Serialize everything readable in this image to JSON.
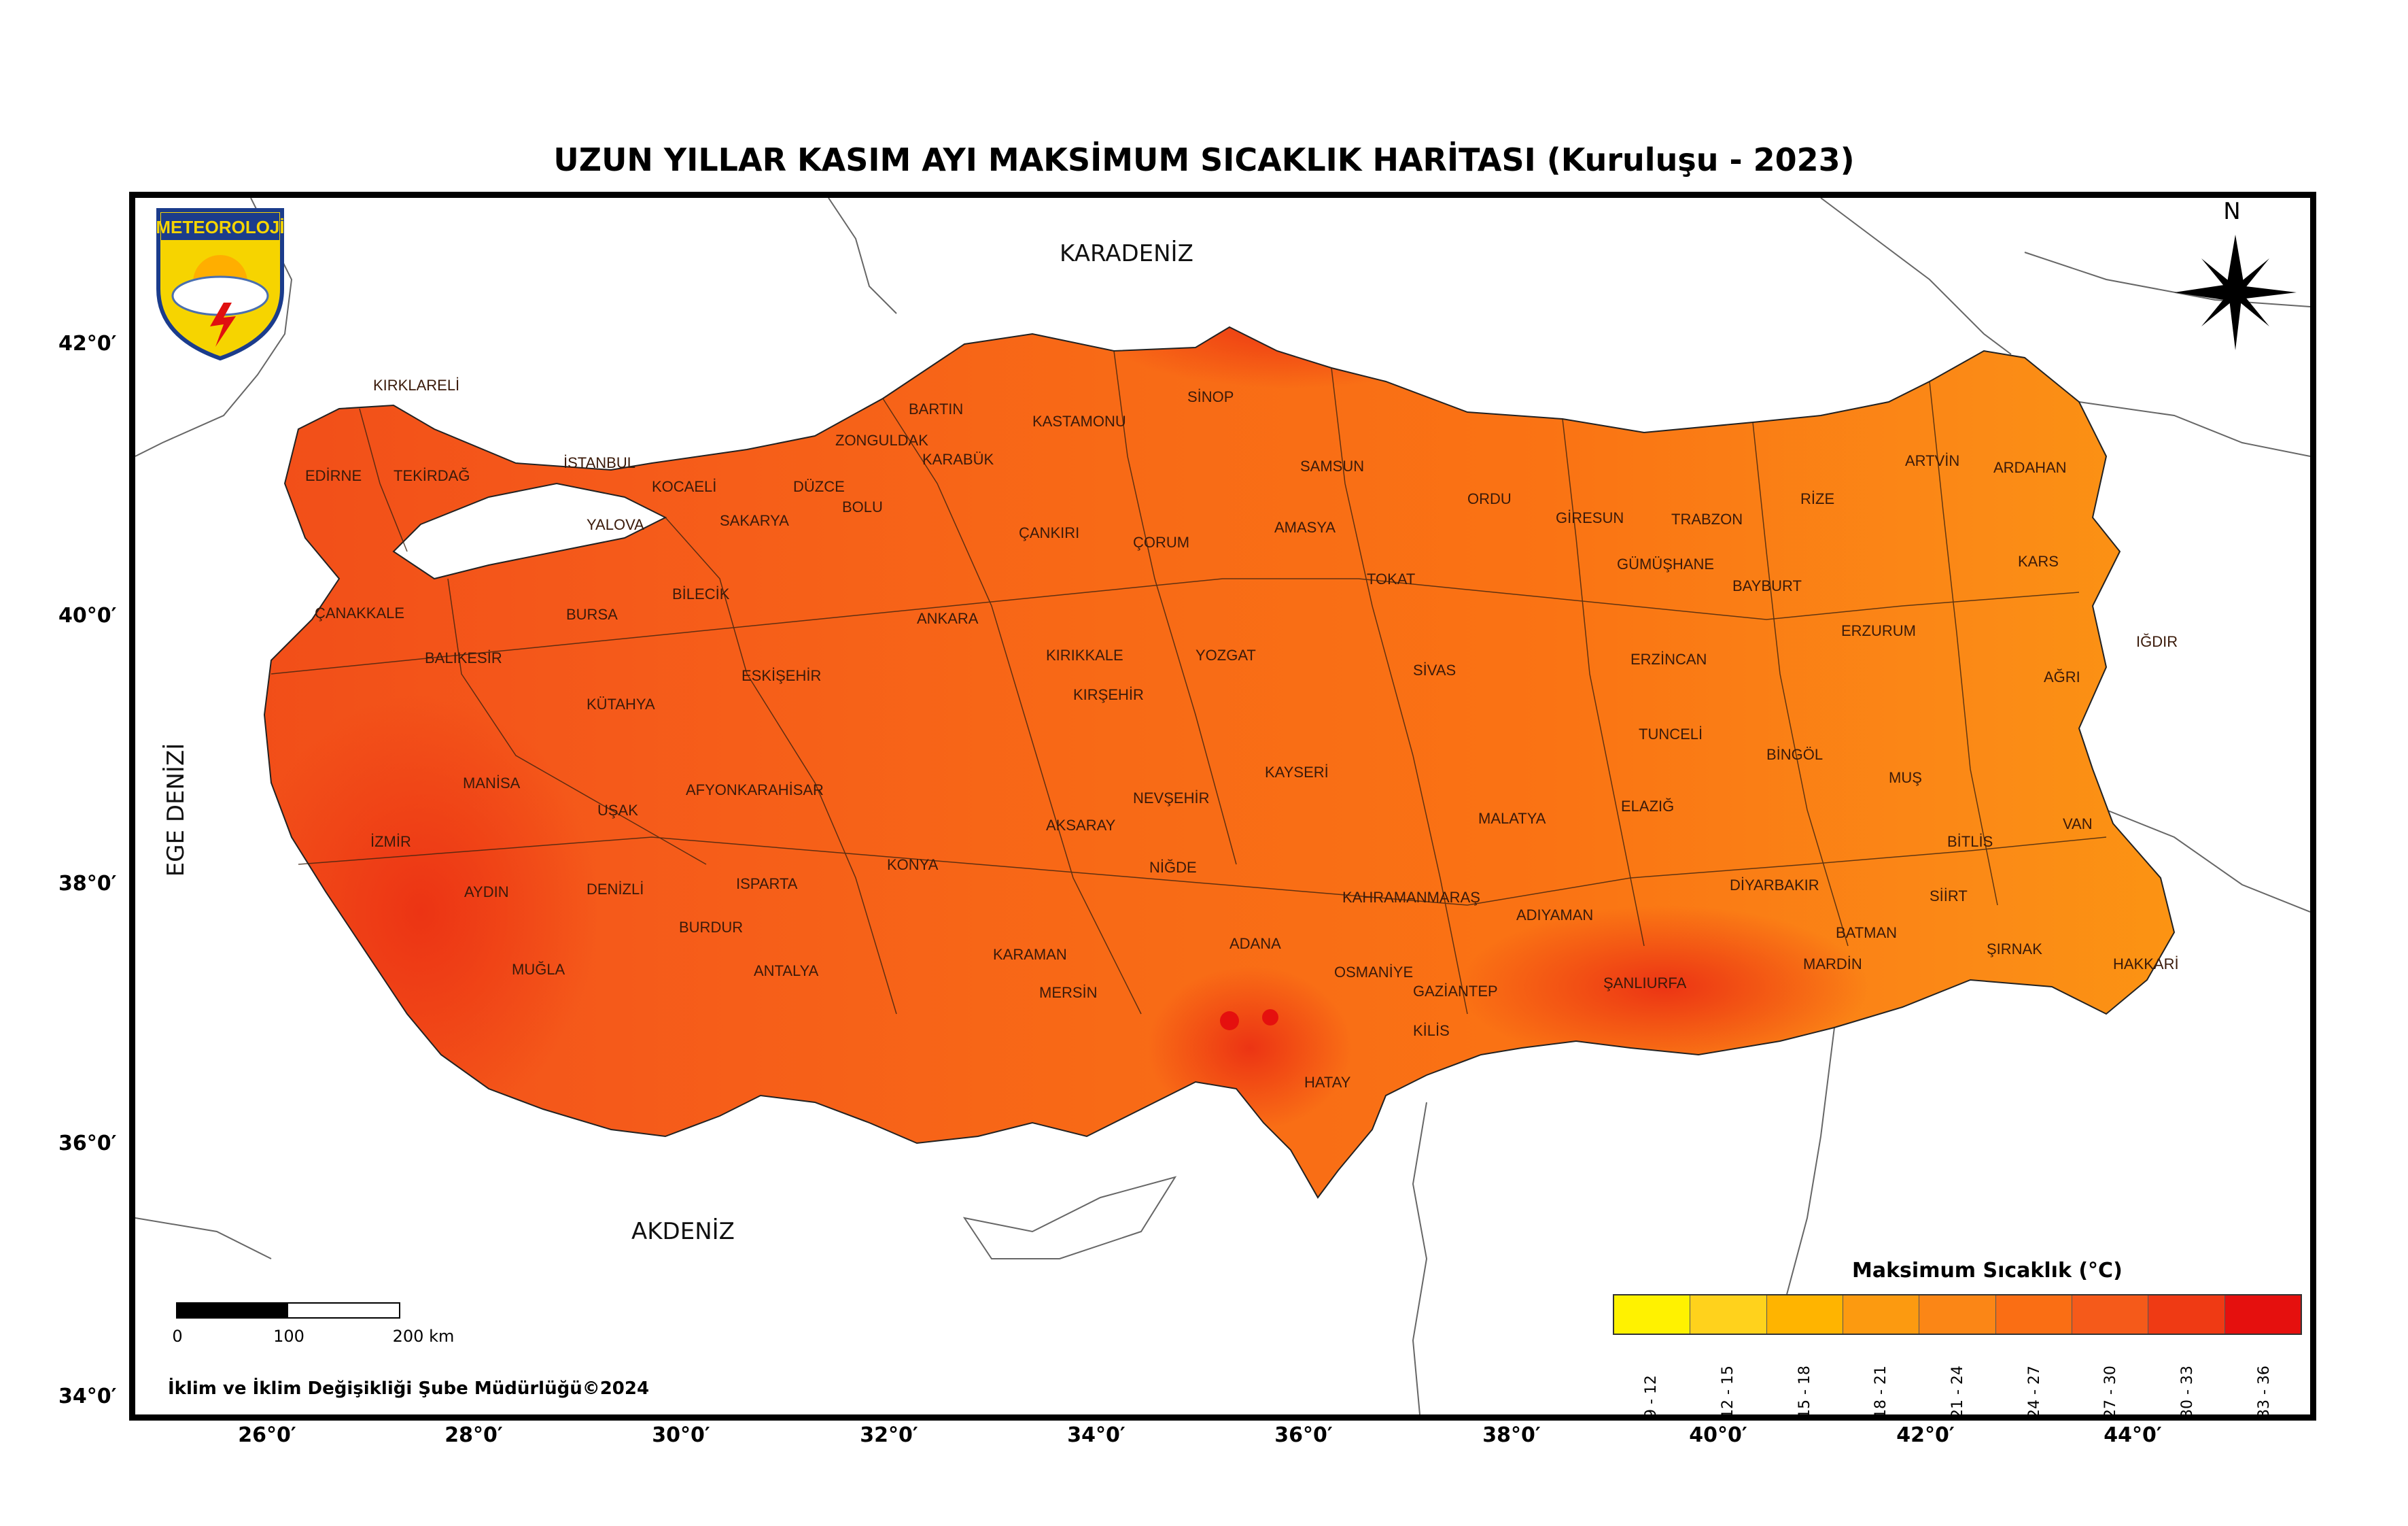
{
  "title": "UZUN YILLAR KASIM AYI MAKSİMUM SICAKLIK HARİTASI (Kuruluşu - 2023)",
  "logo_text": "METEOROLOJİ",
  "north_label": "N",
  "seas": {
    "black_sea": "KARADENİZ",
    "mediterranean": "AKDENİZ",
    "aegean": "EGE DENİZİ"
  },
  "lat_labels": [
    "42°0′",
    "40°0′",
    "38°0′",
    "36°0′",
    "34°0′"
  ],
  "lon_labels": [
    "26°0′",
    "28°0′",
    "30°0′",
    "32°0′",
    "34°0′",
    "36°0′",
    "38°0′",
    "40°0′",
    "42°0′",
    "44°0′"
  ],
  "scale": {
    "labels": [
      "0",
      "100",
      "200 km"
    ]
  },
  "credit": "İklim ve İklim Değişikliği Şube Müdürlüğü©2024",
  "legend": {
    "title": "Maksimum Sıcaklık (°C)",
    "classes": [
      {
        "label": "9 - 12",
        "color": "#fff200"
      },
      {
        "label": "12 - 15",
        "color": "#ffd21c"
      },
      {
        "label": "15 - 18",
        "color": "#ffb400"
      },
      {
        "label": "18 - 21",
        "color": "#fc9a10"
      },
      {
        "label": "21 - 24",
        "color": "#fb8616"
      },
      {
        "label": "24 - 27",
        "color": "#fa6e14"
      },
      {
        "label": "27 - 30",
        "color": "#f55a1a"
      },
      {
        "label": "30 - 33",
        "color": "#ef3a14"
      },
      {
        "label": "33 - 36",
        "color": "#e5100e"
      }
    ]
  },
  "provinces": [
    "KIRKLARELİ",
    "EDİRNE",
    "TEKİRDAĞ",
    "İSTANBUL",
    "KOCAELİ",
    "YALOVA",
    "SAKARYA",
    "DÜZCE",
    "BOLU",
    "ZONGULDAK",
    "BARTIN",
    "KARABÜK",
    "KASTAMONU",
    "SİNOP",
    "SAMSUN",
    "AMASYA",
    "ÇORUM",
    "ÇANKIRI",
    "ORDU",
    "GİRESUN",
    "TRABZON",
    "RİZE",
    "ARTVİN",
    "ARDAHAN",
    "KARS",
    "IĞDIR",
    "AĞRI",
    "ERZURUM",
    "BAYBURT",
    "GÜMÜŞHANE",
    "ERZİNCAN",
    "TOKAT",
    "SİVAS",
    "YOZGAT",
    "KIRIKKALE",
    "ANKARA",
    "KIRŞEHİR",
    "ESKİŞEHİR",
    "BİLECİK",
    "BURSA",
    "BALIKESİR",
    "ÇANAKKALE",
    "KÜTAHYA",
    "MANİSA",
    "İZMİR",
    "UŞAK",
    "AFYONKARAHİSAR",
    "AYDIN",
    "DENİZLİ",
    "MUĞLA",
    "ISPARTA",
    "BURDUR",
    "ANTALYA",
    "KONYA",
    "AKSARAY",
    "NEVŞEHİR",
    "NİĞDE",
    "KAYSERİ",
    "KARAMAN",
    "MERSİN",
    "ADANA",
    "OSMANİYE",
    "HATAY",
    "KAHRAMANMARAŞ",
    "GAZİANTEP",
    "KİLİS",
    "ADIYAMAN",
    "ŞANLIURFA",
    "MALATYA",
    "ELAZIĞ",
    "TUNCELİ",
    "BİNGÖL",
    "MUŞ",
    "BİTLİS",
    "VAN",
    "DİYARBAKIR",
    "MARDİN",
    "BATMAN",
    "SİİRT",
    "ŞIRNAK",
    "HAKKARİ"
  ]
}
